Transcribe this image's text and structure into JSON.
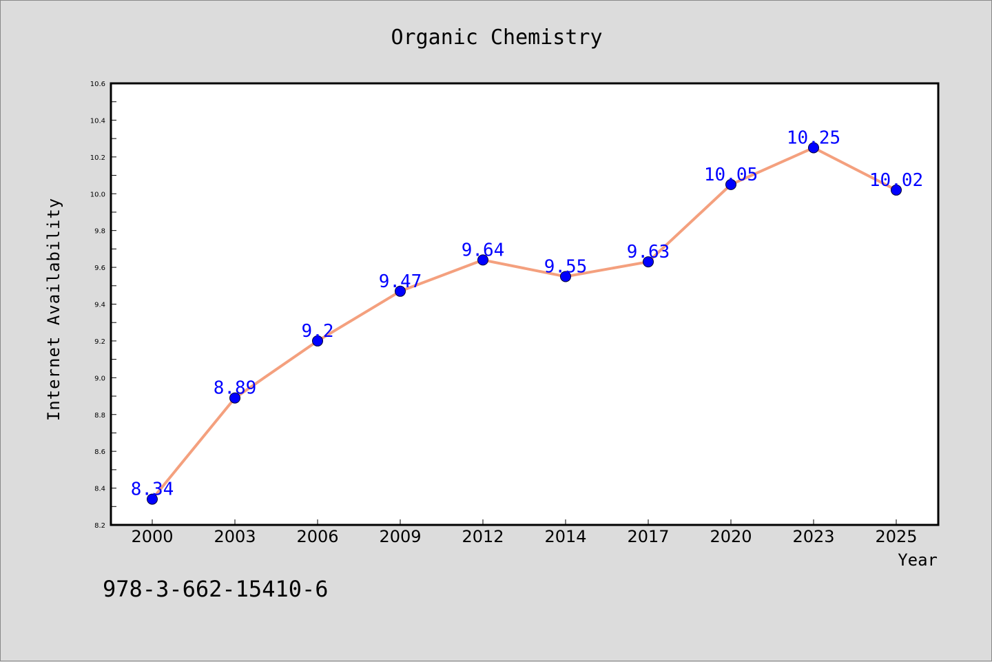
{
  "chart_data": {
    "type": "line",
    "title": "Organic Chemistry",
    "xlabel": "Year",
    "ylabel": "Internet Availability",
    "categories": [
      "2000",
      "2003",
      "2006",
      "2009",
      "2012",
      "2014",
      "2017",
      "2020",
      "2023",
      "2025"
    ],
    "series": [
      {
        "values": [
          8.34,
          8.89,
          9.2,
          9.47,
          9.64,
          9.55,
          9.63,
          10.05,
          10.25,
          10.02
        ],
        "data_labels": [
          "8.34",
          "8.89",
          "9.2",
          "9.47",
          "9.64",
          "9.55",
          "9.63",
          "10.05",
          "10.25",
          "10.02"
        ],
        "line_color": "#f4a07e",
        "marker_color": "#0000ff",
        "label_color": "#0000ff"
      }
    ],
    "ylim": [
      8.2,
      10.6
    ],
    "yticks": [
      "8.2",
      "8.4",
      "8.6",
      "8.8",
      "9.0",
      "9.2",
      "9.4",
      "9.6",
      "9.8",
      "10.0",
      "10.2",
      "10.4",
      "10.6"
    ],
    "grid": false,
    "legend": "none"
  },
  "footer_text": "978-3-662-15410-6",
  "colors": {
    "background": "#dcdcdc",
    "plot_background": "#ffffff",
    "axis": "#000000"
  }
}
